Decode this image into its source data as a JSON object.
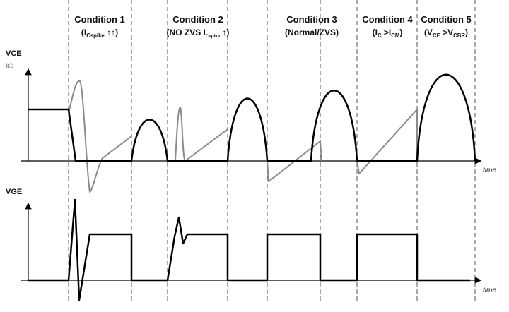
{
  "labels": {
    "vce": "VCE",
    "ic": "IC",
    "vge": "VGE",
    "time_top": "time",
    "time_bottom": "time"
  },
  "conditions": [
    {
      "title": "Condition 1",
      "note": [
        {
          "text": "(I"
        },
        {
          "sub": "Cspike"
        },
        {
          "text": " ↑↑)"
        }
      ]
    },
    {
      "title": "Condition 2",
      "note": [
        {
          "text": "(NO ZVS I"
        },
        {
          "sub": "Cspike"
        },
        {
          "text": " ↑)"
        }
      ]
    },
    {
      "title": "Condition 3",
      "note": [
        {
          "text": "(Normal/ZVS)"
        }
      ]
    },
    {
      "title": "Condition 4",
      "note": [
        {
          "text": "(I"
        },
        {
          "sub": "C"
        },
        {
          "text": " >I"
        },
        {
          "sub": "CM"
        },
        {
          "text": ")"
        }
      ]
    },
    {
      "title": "Condition 5",
      "note": [
        {
          "text": "(V"
        },
        {
          "sub": "CE"
        },
        {
          "text": " >V"
        },
        {
          "sub": "CBR"
        },
        {
          "text": ")"
        }
      ]
    }
  ]
}
